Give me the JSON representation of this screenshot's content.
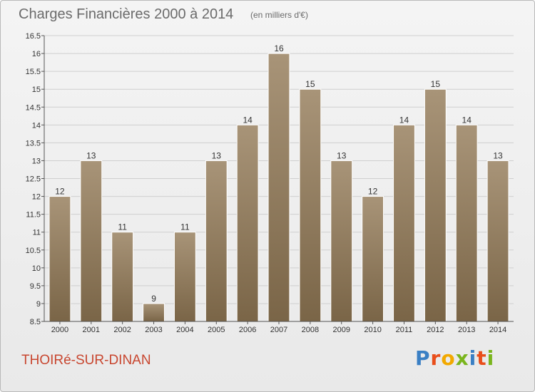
{
  "header": {
    "title": "Charges Financières 2000 à 2014",
    "subtitle": "(en milliers d'€)"
  },
  "footer": {
    "commune": "THOIRé-SUR-DINAN",
    "logo_letters": [
      "P",
      "r",
      "o",
      "x",
      "i",
      "t",
      "i"
    ],
    "logo_colors": [
      "#3a7fc4",
      "#e94e1b",
      "#f2a900",
      "#7ab51d",
      "#3a7fc4",
      "#e94e1b",
      "#7ab51d"
    ]
  },
  "colors": {
    "bar_top": "#a89478",
    "bar_bottom": "#7a6547",
    "grid": "#cfcfcf",
    "axis": "#555555",
    "text": "#333333"
  },
  "chart_data": {
    "type": "bar",
    "categories": [
      "2000",
      "2001",
      "2002",
      "2003",
      "2004",
      "2005",
      "2006",
      "2007",
      "2008",
      "2009",
      "2010",
      "2011",
      "2012",
      "2013",
      "2014"
    ],
    "values": [
      12,
      13,
      11,
      9,
      11,
      13,
      14,
      16,
      15,
      13,
      12,
      14,
      15,
      14,
      13
    ],
    "ylim": [
      8.5,
      16.5
    ],
    "yticks": [
      "8.5",
      "9",
      "9.5",
      "10",
      "10.5",
      "11",
      "11.5",
      "12",
      "12.5",
      "13",
      "13.5",
      "14",
      "14.5",
      "15",
      "15.5",
      "16",
      "16.5"
    ],
    "grid": true,
    "title": "Charges Financières 2000 à 2014",
    "xlabel": "",
    "ylabel": ""
  }
}
